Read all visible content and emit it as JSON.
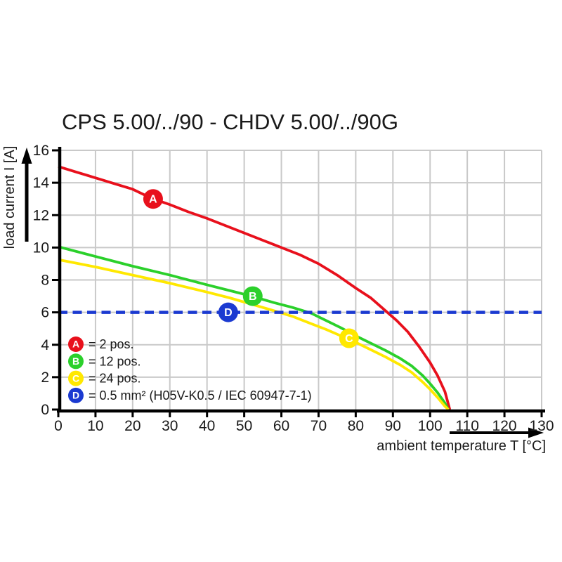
{
  "chart_data": {
    "type": "line",
    "title": "CPS 5.00/../90 - CHDV 5.00/../90G",
    "xlabel": "ambient temperature T [°C]",
    "ylabel": "load current I [A]",
    "xlim": [
      0,
      130
    ],
    "ylim": [
      0,
      16
    ],
    "xticks": [
      0,
      10,
      20,
      30,
      40,
      50,
      60,
      70,
      80,
      90,
      100,
      110,
      120,
      130
    ],
    "yticks": [
      0,
      2,
      4,
      6,
      8,
      10,
      12,
      14,
      16
    ],
    "grid": true,
    "grid_color": "#c9c9c9",
    "axis_color": "#000000",
    "marker_text_color": "#ffffff",
    "legend_position": "lower-left",
    "series": [
      {
        "name": "A",
        "legend": "= 2 pos.",
        "color": "#e8101c",
        "style": "solid",
        "marker": {
          "letter": "A",
          "x": 25.5,
          "y": 13.0
        },
        "points": [
          [
            0,
            15.0
          ],
          [
            5,
            14.65
          ],
          [
            10,
            14.3
          ],
          [
            15,
            13.95
          ],
          [
            20,
            13.6
          ],
          [
            25,
            13.05
          ],
          [
            30,
            12.65
          ],
          [
            35,
            12.2
          ],
          [
            40,
            11.8
          ],
          [
            45,
            11.35
          ],
          [
            50,
            10.9
          ],
          [
            55,
            10.45
          ],
          [
            60,
            10.0
          ],
          [
            65,
            9.55
          ],
          [
            70,
            9.0
          ],
          [
            75,
            8.3
          ],
          [
            80,
            7.5
          ],
          [
            84,
            6.9
          ],
          [
            88,
            6.1
          ],
          [
            91,
            5.5
          ],
          [
            94,
            4.8
          ],
          [
            97,
            3.9
          ],
          [
            100,
            2.9
          ],
          [
            102,
            2.1
          ],
          [
            104,
            1.1
          ],
          [
            105.3,
            0
          ]
        ]
      },
      {
        "name": "B",
        "legend": "= 12 pos.",
        "color": "#2bd02b",
        "style": "solid",
        "marker": {
          "letter": "B",
          "x": 52.3,
          "y": 7.0
        },
        "points": [
          [
            0,
            10.05
          ],
          [
            10,
            9.45
          ],
          [
            20,
            8.85
          ],
          [
            30,
            8.3
          ],
          [
            40,
            7.7
          ],
          [
            46,
            7.35
          ],
          [
            52,
            7.0
          ],
          [
            58,
            6.6
          ],
          [
            63,
            6.3
          ],
          [
            68,
            5.95
          ],
          [
            72,
            5.5
          ],
          [
            76,
            5.05
          ],
          [
            80,
            4.55
          ],
          [
            84,
            4.1
          ],
          [
            88,
            3.65
          ],
          [
            92,
            3.15
          ],
          [
            95,
            2.7
          ],
          [
            98,
            2.1
          ],
          [
            100,
            1.6
          ],
          [
            102,
            1.05
          ],
          [
            104,
            0.4
          ],
          [
            104.9,
            0
          ]
        ]
      },
      {
        "name": "C",
        "legend": "= 24 pos.",
        "color": "#ffe800",
        "style": "solid",
        "marker": {
          "letter": "C",
          "x": 78.2,
          "y": 4.4
        },
        "points": [
          [
            0,
            9.25
          ],
          [
            10,
            8.8
          ],
          [
            20,
            8.3
          ],
          [
            30,
            7.8
          ],
          [
            40,
            7.25
          ],
          [
            46,
            6.9
          ],
          [
            52,
            6.5
          ],
          [
            58,
            6.1
          ],
          [
            63,
            5.75
          ],
          [
            68,
            5.3
          ],
          [
            72,
            4.95
          ],
          [
            76,
            4.55
          ],
          [
            80,
            4.15
          ],
          [
            84,
            3.7
          ],
          [
            88,
            3.25
          ],
          [
            92,
            2.75
          ],
          [
            95,
            2.3
          ],
          [
            98,
            1.7
          ],
          [
            100,
            1.25
          ],
          [
            102,
            0.75
          ],
          [
            104,
            0.2
          ],
          [
            104.9,
            0
          ]
        ]
      },
      {
        "name": "D",
        "legend": "= 0.5 mm² (H05V-K0.5 / IEC 60947-7-1)",
        "color": "#1b3ad1",
        "style": "dashed",
        "marker": {
          "letter": "D",
          "x": 45.7,
          "y": 6.0
        },
        "points": [
          [
            0,
            6
          ],
          [
            130,
            6
          ]
        ]
      }
    ]
  }
}
